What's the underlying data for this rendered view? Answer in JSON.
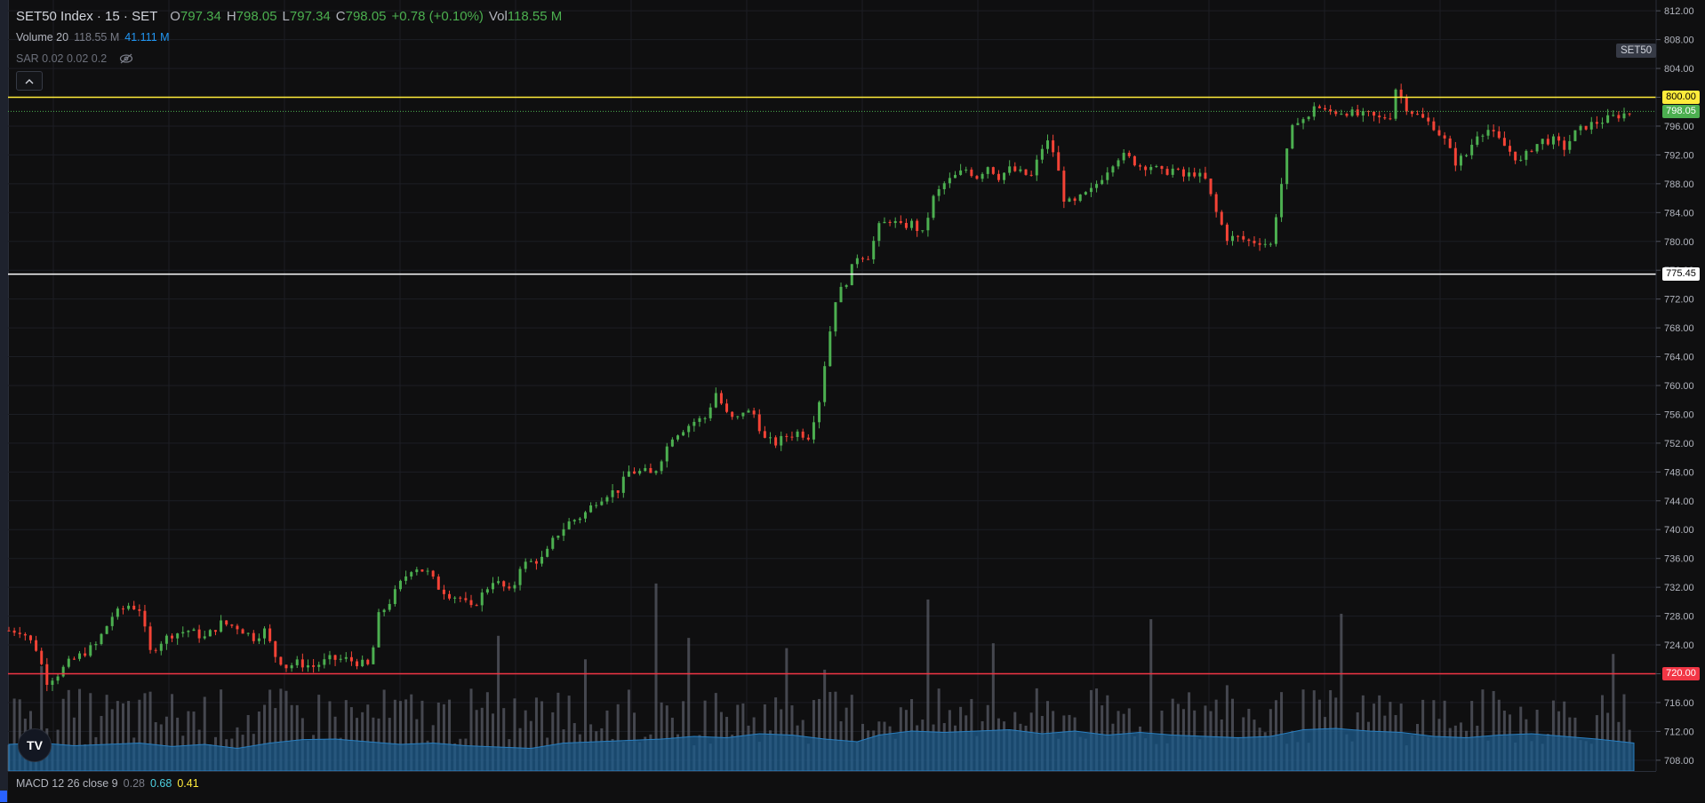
{
  "header": {
    "symbol": "SET50 Index · 15 · SET",
    "open_label": "O",
    "open": "797.34",
    "high_label": "H",
    "high": "798.05",
    "low_label": "L",
    "low": "797.34",
    "close_label": "C",
    "close": "798.05",
    "change": "+0.78 (+0.10%)",
    "vol_label": "Vol",
    "vol": "118.55 M"
  },
  "indicators": {
    "volume_label": "Volume 20",
    "volume_value": "118.55 M",
    "volume_ma": "41.111 M",
    "sar_label": "SAR 0.02 0.02 0.2",
    "macd_label": "MACD 12 26 close 9",
    "macd_hist": "0.28",
    "macd_line": "0.68",
    "macd_signal": "0.41"
  },
  "symbol_tag": "SET50",
  "logo_text": "TV",
  "colors": {
    "up": "#4caf50",
    "down": "#f44336",
    "volume": "#5d606b",
    "volume_ma": "#1e5c8c",
    "line_800": "#ffeb3b",
    "line_775": "#ffffff",
    "line_720": "#f23645"
  },
  "chart_data": {
    "type": "candlestick",
    "y_axis": {
      "ticks": [
        "812.00",
        "808.00",
        "804.00",
        "800.00",
        "796.00",
        "792.00",
        "788.00",
        "784.00",
        "780.00",
        "776.00",
        "772.00",
        "768.00",
        "764.00",
        "760.00",
        "756.00",
        "752.00",
        "748.00",
        "744.00",
        "740.00",
        "736.00",
        "732.00",
        "728.00",
        "724.00",
        "720.00",
        "716.00",
        "712.00",
        "708.00"
      ],
      "ylim": [
        706.5,
        813.5
      ]
    },
    "horizontal_lines": [
      {
        "value": 800.0,
        "label": "800.00",
        "color": "#ffeb3b"
      },
      {
        "value": 775.45,
        "label": "775.45",
        "color": "#ffffff"
      },
      {
        "value": 720.0,
        "label": "720.00",
        "color": "#f23645"
      }
    ],
    "last_price": {
      "value": 798.05,
      "label": "798.05"
    },
    "price_path": [
      [
        0,
        726
      ],
      [
        12,
        726
      ],
      [
        25,
        723.5
      ],
      [
        35,
        719
      ],
      [
        45,
        720
      ],
      [
        55,
        721.5
      ],
      [
        70,
        723
      ],
      [
        80,
        724
      ],
      [
        95,
        728
      ],
      [
        110,
        729.5
      ],
      [
        120,
        729
      ],
      [
        130,
        723
      ],
      [
        140,
        724.5
      ],
      [
        150,
        725.5
      ],
      [
        165,
        726
      ],
      [
        180,
        725
      ],
      [
        195,
        727
      ],
      [
        210,
        726.5
      ],
      [
        225,
        725
      ],
      [
        235,
        726
      ],
      [
        245,
        722.5
      ],
      [
        255,
        721
      ],
      [
        265,
        721.5
      ],
      [
        280,
        721
      ],
      [
        295,
        722
      ],
      [
        310,
        722
      ],
      [
        322,
        721.5
      ],
      [
        332,
        721
      ],
      [
        340,
        728
      ],
      [
        350,
        730
      ],
      [
        362,
        733
      ],
      [
        372,
        735
      ],
      [
        385,
        734
      ],
      [
        395,
        732
      ],
      [
        405,
        731
      ],
      [
        415,
        730.5
      ],
      [
        425,
        729
      ],
      [
        435,
        731
      ],
      [
        445,
        733
      ],
      [
        455,
        732
      ],
      [
        462,
        731
      ],
      [
        470,
        735
      ],
      [
        480,
        735.5
      ],
      [
        492,
        736
      ],
      [
        502,
        739
      ],
      [
        515,
        741
      ],
      [
        528,
        742
      ],
      [
        540,
        744
      ],
      [
        550,
        745
      ],
      [
        560,
        745.5
      ],
      [
        570,
        748
      ],
      [
        585,
        748
      ],
      [
        592,
        747.5
      ],
      [
        600,
        750
      ],
      [
        610,
        753
      ],
      [
        620,
        754
      ],
      [
        630,
        755
      ],
      [
        640,
        755.5
      ],
      [
        650,
        759
      ],
      [
        660,
        756
      ],
      [
        668,
        755
      ],
      [
        675,
        756.5
      ],
      [
        685,
        756
      ],
      [
        695,
        752.5
      ],
      [
        705,
        752
      ],
      [
        715,
        753
      ],
      [
        725,
        753.5
      ],
      [
        735,
        753
      ],
      [
        745,
        758
      ],
      [
        752,
        765
      ],
      [
        760,
        772
      ],
      [
        770,
        774.5
      ],
      [
        780,
        778
      ],
      [
        790,
        778
      ],
      [
        800,
        782
      ],
      [
        810,
        783
      ],
      [
        820,
        782
      ],
      [
        830,
        782.5
      ],
      [
        840,
        781
      ],
      [
        850,
        786
      ],
      [
        860,
        788
      ],
      [
        870,
        789
      ],
      [
        880,
        790
      ],
      [
        890,
        789
      ],
      [
        900,
        790.5
      ],
      [
        910,
        789
      ],
      [
        920,
        790
      ],
      [
        930,
        789.5
      ],
      [
        940,
        789
      ],
      [
        950,
        793
      ],
      [
        957,
        794
      ],
      [
        963,
        791
      ],
      [
        970,
        786
      ],
      [
        978,
        785
      ],
      [
        985,
        786
      ],
      [
        995,
        787
      ],
      [
        1005,
        789
      ],
      [
        1015,
        791
      ],
      [
        1022,
        792
      ],
      [
        1030,
        791.5
      ],
      [
        1040,
        790.5
      ],
      [
        1050,
        790.5
      ],
      [
        1060,
        789.5
      ],
      [
        1070,
        790
      ],
      [
        1080,
        789
      ],
      [
        1090,
        789.5
      ],
      [
        1100,
        788.5
      ],
      [
        1110,
        784
      ],
      [
        1120,
        780.5
      ],
      [
        1130,
        780.5
      ],
      [
        1140,
        780
      ],
      [
        1150,
        780
      ],
      [
        1160,
        779.5
      ],
      [
        1170,
        788
      ],
      [
        1178,
        795
      ],
      [
        1185,
        797
      ],
      [
        1195,
        797
      ],
      [
        1200,
        799
      ],
      [
        1210,
        798
      ],
      [
        1220,
        798
      ],
      [
        1230,
        798
      ],
      [
        1240,
        797.5
      ],
      [
        1250,
        797.5
      ],
      [
        1260,
        797
      ],
      [
        1270,
        797.5
      ],
      [
        1276,
        802
      ],
      [
        1282,
        799
      ],
      [
        1290,
        798
      ],
      [
        1300,
        797
      ],
      [
        1310,
        796
      ],
      [
        1320,
        794
      ],
      [
        1330,
        791
      ],
      [
        1340,
        792
      ],
      [
        1350,
        795
      ],
      [
        1360,
        795.5
      ],
      [
        1370,
        794
      ],
      [
        1380,
        792.5
      ],
      [
        1390,
        791
      ],
      [
        1400,
        793
      ],
      [
        1410,
        794
      ],
      [
        1420,
        794
      ],
      [
        1430,
        793
      ],
      [
        1440,
        795
      ],
      [
        1450,
        796
      ],
      [
        1460,
        796.5
      ],
      [
        1470,
        797
      ],
      [
        1480,
        797.5
      ],
      [
        1494,
        798.05
      ]
    ],
    "volume_ma_path": [
      [
        0,
        1.0
      ],
      [
        30,
        1.05
      ],
      [
        60,
        0.95
      ],
      [
        90,
        1.0
      ],
      [
        120,
        1.05
      ],
      [
        150,
        0.92
      ],
      [
        180,
        1.0
      ],
      [
        210,
        0.85
      ],
      [
        240,
        1.05
      ],
      [
        270,
        1.18
      ],
      [
        300,
        1.2
      ],
      [
        330,
        1.1
      ],
      [
        360,
        1.0
      ],
      [
        390,
        1.05
      ],
      [
        420,
        0.95
      ],
      [
        450,
        0.9
      ],
      [
        480,
        0.85
      ],
      [
        510,
        1.05
      ],
      [
        540,
        1.1
      ],
      [
        570,
        1.15
      ],
      [
        600,
        1.2
      ],
      [
        630,
        1.3
      ],
      [
        660,
        1.25
      ],
      [
        690,
        1.4
      ],
      [
        720,
        1.35
      ],
      [
        750,
        1.2
      ],
      [
        780,
        1.1
      ],
      [
        800,
        1.35
      ],
      [
        830,
        1.5
      ],
      [
        860,
        1.45
      ],
      [
        890,
        1.5
      ],
      [
        920,
        1.55
      ],
      [
        950,
        1.4
      ],
      [
        980,
        1.5
      ],
      [
        1010,
        1.35
      ],
      [
        1040,
        1.45
      ],
      [
        1070,
        1.35
      ],
      [
        1100,
        1.3
      ],
      [
        1130,
        1.25
      ],
      [
        1160,
        1.3
      ],
      [
        1190,
        1.55
      ],
      [
        1220,
        1.6
      ],
      [
        1250,
        1.5
      ],
      [
        1280,
        1.45
      ],
      [
        1310,
        1.3
      ],
      [
        1340,
        1.25
      ],
      [
        1370,
        1.35
      ],
      [
        1400,
        1.4
      ],
      [
        1430,
        1.3
      ],
      [
        1460,
        1.2
      ],
      [
        1494,
        1.05
      ]
    ]
  }
}
